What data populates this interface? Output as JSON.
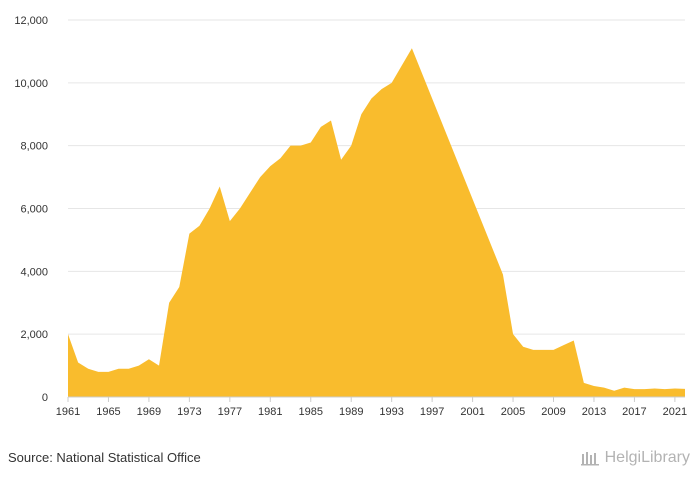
{
  "chart_data": {
    "type": "area",
    "x": [
      1961,
      1962,
      1963,
      1964,
      1965,
      1966,
      1967,
      1968,
      1969,
      1970,
      1971,
      1972,
      1973,
      1974,
      1975,
      1976,
      1977,
      1978,
      1979,
      1980,
      1981,
      1982,
      1983,
      1984,
      1985,
      1986,
      1987,
      1988,
      1989,
      1990,
      1991,
      1992,
      1993,
      1994,
      1995,
      1996,
      1997,
      1998,
      1999,
      2000,
      2001,
      2002,
      2003,
      2004,
      2005,
      2006,
      2007,
      2008,
      2009,
      2010,
      2011,
      2012,
      2013,
      2014,
      2015,
      2016,
      2017,
      2018,
      2019,
      2020,
      2021,
      2022
    ],
    "values": [
      2000,
      1100,
      900,
      800,
      800,
      900,
      900,
      1000,
      1200,
      1000,
      3000,
      3500,
      5200,
      5450,
      6000,
      6700,
      5600,
      6000,
      6500,
      7000,
      7350,
      7600,
      8000,
      8000,
      8100,
      8600,
      8800,
      7550,
      8000,
      9000,
      9500,
      9800,
      10000,
      10550,
      11100,
      10300,
      9500,
      8700,
      7900,
      7100,
      6300,
      5500,
      4700,
      3900,
      2000,
      1600,
      1500,
      1500,
      1500,
      1650,
      1800,
      450,
      350,
      300,
      200,
      300,
      250,
      250,
      270,
      250,
      270,
      260
    ],
    "xticks": [
      "1961",
      "1965",
      "1969",
      "1973",
      "1977",
      "1981",
      "1985",
      "1989",
      "1993",
      "1997",
      "2001",
      "2005",
      "2009",
      "2013",
      "2017",
      "2021"
    ],
    "yticks": [
      "0",
      "2,000",
      "4,000",
      "6,000",
      "8,000",
      "10,000",
      "12,000"
    ],
    "ylim": [
      0,
      12000
    ],
    "grid": true,
    "fill_color": "#f9bc2d",
    "grid_color": "#e6e6e6"
  },
  "footer": {
    "source": "Source: National Statistical Office",
    "brand": "HelgiLibrary",
    "brand_icon": "library-logo-icon"
  }
}
